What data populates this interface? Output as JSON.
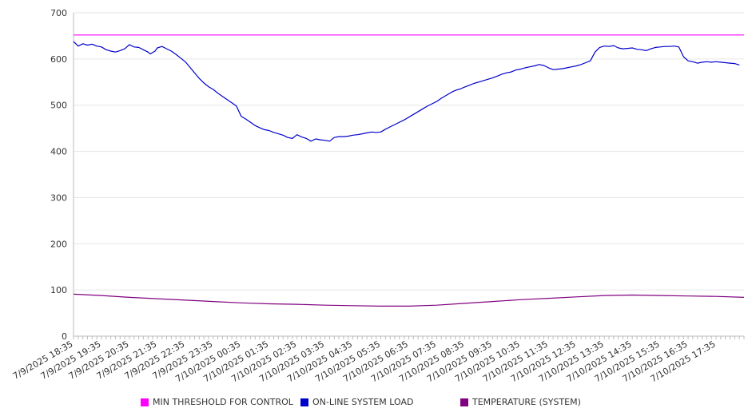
{
  "chart_data": {
    "type": "line",
    "title": "",
    "xlabel": "",
    "ylabel": "",
    "ylim": [
      0,
      700
    ],
    "yticks": [
      0,
      100,
      200,
      300,
      400,
      500,
      600,
      700
    ],
    "grid": true,
    "legend_position": "bottom",
    "x_tick_labels": [
      "7/9/2025 18:35",
      "7/9/2025 19:35",
      "7/9/2025 20:35",
      "7/9/2025 21:35",
      "7/9/2025 22:35",
      "7/9/2025 23:35",
      "7/10/2025 00:35",
      "7/10/2025 01:35",
      "7/10/2025 02:35",
      "7/10/2025 03:35",
      "7/10/2025 04:35",
      "7/10/2025 05:35",
      "7/10/2025 06:35",
      "7/10/2025 07:35",
      "7/10/2025 08:35",
      "7/10/2025 09:35",
      "7/10/2025 10:35",
      "7/10/2025 11:35",
      "7/10/2025 12:35",
      "7/10/2025 13:35",
      "7/10/2025 14:35",
      "7/10/2025 15:35",
      "7/10/2025 16:35",
      "7/10/2025 17:35"
    ],
    "x_range": [
      "7/9/2025 18:35",
      "7/10/2025 18:35"
    ],
    "series": [
      {
        "name": "MIN THRESHOLD FOR CONTROL",
        "color": "#ff00ff",
        "points": [
          [
            "7/9/2025 18:35",
            652
          ],
          [
            "7/10/2025 18:35",
            652
          ]
        ]
      },
      {
        "name": "ON-LINE SYSTEM LOAD",
        "color": "#0000cc",
        "points": [
          [
            "7/9/2025 18:35",
            638
          ],
          [
            "7/9/2025 18:45",
            628
          ],
          [
            "7/9/2025 18:55",
            633
          ],
          [
            "7/9/2025 19:05",
            630
          ],
          [
            "7/9/2025 19:15",
            632
          ],
          [
            "7/9/2025 19:25",
            628
          ],
          [
            "7/9/2025 19:35",
            626
          ],
          [
            "7/9/2025 19:45",
            620
          ],
          [
            "7/9/2025 19:55",
            617
          ],
          [
            "7/9/2025 20:05",
            615
          ],
          [
            "7/9/2025 20:15",
            618
          ],
          [
            "7/9/2025 20:25",
            622
          ],
          [
            "7/9/2025 20:35",
            631
          ],
          [
            "7/9/2025 20:45",
            626
          ],
          [
            "7/9/2025 20:55",
            625
          ],
          [
            "7/9/2025 21:05",
            620
          ],
          [
            "7/9/2025 21:15",
            615
          ],
          [
            "7/9/2025 21:20",
            611
          ],
          [
            "7/9/2025 21:30",
            617
          ],
          [
            "7/9/2025 21:35",
            624
          ],
          [
            "7/9/2025 21:45",
            627
          ],
          [
            "7/9/2025 21:55",
            622
          ],
          [
            "7/9/2025 22:05",
            617
          ],
          [
            "7/9/2025 22:15",
            610
          ],
          [
            "7/9/2025 22:25",
            602
          ],
          [
            "7/9/2025 22:35",
            594
          ],
          [
            "7/9/2025 22:45",
            582
          ],
          [
            "7/9/2025 22:55",
            570
          ],
          [
            "7/9/2025 23:05",
            558
          ],
          [
            "7/9/2025 23:15",
            548
          ],
          [
            "7/9/2025 23:25",
            540
          ],
          [
            "7/9/2025 23:35",
            534
          ],
          [
            "7/9/2025 23:45",
            526
          ],
          [
            "7/9/2025 23:55",
            519
          ],
          [
            "7/10/2025 00:05",
            512
          ],
          [
            "7/10/2025 00:15",
            505
          ],
          [
            "7/10/2025 00:25",
            498
          ],
          [
            "7/10/2025 00:35",
            476
          ],
          [
            "7/10/2025 00:45",
            470
          ],
          [
            "7/10/2025 00:55",
            463
          ],
          [
            "7/10/2025 01:05",
            456
          ],
          [
            "7/10/2025 01:15",
            451
          ],
          [
            "7/10/2025 01:25",
            447
          ],
          [
            "7/10/2025 01:35",
            445
          ],
          [
            "7/10/2025 01:45",
            441
          ],
          [
            "7/10/2025 01:55",
            438
          ],
          [
            "7/10/2025 02:05",
            435
          ],
          [
            "7/10/2025 02:15",
            430
          ],
          [
            "7/10/2025 02:25",
            428
          ],
          [
            "7/10/2025 02:35",
            436
          ],
          [
            "7/10/2025 02:45",
            431
          ],
          [
            "7/10/2025 02:55",
            428
          ],
          [
            "7/10/2025 03:05",
            422
          ],
          [
            "7/10/2025 03:15",
            427
          ],
          [
            "7/10/2025 03:25",
            425
          ],
          [
            "7/10/2025 03:35",
            424
          ],
          [
            "7/10/2025 03:45",
            422
          ],
          [
            "7/10/2025 03:55",
            430
          ],
          [
            "7/10/2025 04:05",
            432
          ],
          [
            "7/10/2025 04:15",
            432
          ],
          [
            "7/10/2025 04:25",
            433
          ],
          [
            "7/10/2025 04:35",
            435
          ],
          [
            "7/10/2025 04:45",
            436
          ],
          [
            "7/10/2025 04:55",
            438
          ],
          [
            "7/10/2025 05:05",
            440
          ],
          [
            "7/10/2025 05:15",
            442
          ],
          [
            "7/10/2025 05:25",
            441
          ],
          [
            "7/10/2025 05:35",
            442
          ],
          [
            "7/10/2025 05:45",
            448
          ],
          [
            "7/10/2025 05:55",
            453
          ],
          [
            "7/10/2025 06:05",
            458
          ],
          [
            "7/10/2025 06:15",
            463
          ],
          [
            "7/10/2025 06:25",
            468
          ],
          [
            "7/10/2025 06:35",
            474
          ],
          [
            "7/10/2025 06:45",
            480
          ],
          [
            "7/10/2025 06:55",
            486
          ],
          [
            "7/10/2025 07:05",
            492
          ],
          [
            "7/10/2025 07:15",
            498
          ],
          [
            "7/10/2025 07:25",
            503
          ],
          [
            "7/10/2025 07:35",
            508
          ],
          [
            "7/10/2025 07:45",
            515
          ],
          [
            "7/10/2025 07:55",
            521
          ],
          [
            "7/10/2025 08:05",
            527
          ],
          [
            "7/10/2025 08:15",
            532
          ],
          [
            "7/10/2025 08:25",
            535
          ],
          [
            "7/10/2025 08:35",
            539
          ],
          [
            "7/10/2025 08:45",
            543
          ],
          [
            "7/10/2025 08:55",
            547
          ],
          [
            "7/10/2025 09:05",
            550
          ],
          [
            "7/10/2025 09:15",
            553
          ],
          [
            "7/10/2025 09:25",
            556
          ],
          [
            "7/10/2025 09:35",
            559
          ],
          [
            "7/10/2025 09:45",
            563
          ],
          [
            "7/10/2025 09:55",
            567
          ],
          [
            "7/10/2025 10:05",
            570
          ],
          [
            "7/10/2025 10:15",
            572
          ],
          [
            "7/10/2025 10:25",
            576
          ],
          [
            "7/10/2025 10:35",
            578
          ],
          [
            "7/10/2025 10:45",
            581
          ],
          [
            "7/10/2025 10:55",
            583
          ],
          [
            "7/10/2025 11:05",
            585
          ],
          [
            "7/10/2025 11:15",
            588
          ],
          [
            "7/10/2025 11:25",
            586
          ],
          [
            "7/10/2025 11:35",
            581
          ],
          [
            "7/10/2025 11:45",
            577
          ],
          [
            "7/10/2025 11:55",
            578
          ],
          [
            "7/10/2025 12:05",
            579
          ],
          [
            "7/10/2025 12:15",
            581
          ],
          [
            "7/10/2025 12:25",
            583
          ],
          [
            "7/10/2025 12:35",
            585
          ],
          [
            "7/10/2025 12:45",
            588
          ],
          [
            "7/10/2025 12:55",
            592
          ],
          [
            "7/10/2025 13:05",
            596
          ],
          [
            "7/10/2025 13:15",
            615
          ],
          [
            "7/10/2025 13:25",
            625
          ],
          [
            "7/10/2025 13:35",
            628
          ],
          [
            "7/10/2025 13:45",
            627
          ],
          [
            "7/10/2025 13:55",
            629
          ],
          [
            "7/10/2025 14:05",
            624
          ],
          [
            "7/10/2025 14:15",
            622
          ],
          [
            "7/10/2025 14:25",
            623
          ],
          [
            "7/10/2025 14:35",
            624
          ],
          [
            "7/10/2025 14:45",
            621
          ],
          [
            "7/10/2025 14:55",
            620
          ],
          [
            "7/10/2025 15:05",
            618
          ],
          [
            "7/10/2025 15:15",
            622
          ],
          [
            "7/10/2025 15:25",
            625
          ],
          [
            "7/10/2025 15:35",
            626
          ],
          [
            "7/10/2025 15:45",
            627
          ],
          [
            "7/10/2025 15:55",
            627
          ],
          [
            "7/10/2025 16:05",
            628
          ],
          [
            "7/10/2025 16:15",
            626
          ],
          [
            "7/10/2025 16:25",
            605
          ],
          [
            "7/10/2025 16:35",
            596
          ],
          [
            "7/10/2025 16:45",
            594
          ],
          [
            "7/10/2025 16:55",
            591
          ],
          [
            "7/10/2025 17:05",
            593
          ],
          [
            "7/10/2025 17:15",
            594
          ],
          [
            "7/10/2025 17:25",
            593
          ],
          [
            "7/10/2025 17:35",
            594
          ],
          [
            "7/10/2025 17:45",
            593
          ],
          [
            "7/10/2025 17:55",
            592
          ],
          [
            "7/10/2025 18:05",
            591
          ],
          [
            "7/10/2025 18:15",
            590
          ],
          [
            "7/10/2025 18:25",
            587
          ]
        ]
      },
      {
        "name": "TEMPERATURE (SYSTEM)",
        "color": "#800080",
        "points": [
          [
            "7/9/2025 18:35",
            91
          ],
          [
            "7/9/2025 19:35",
            88
          ],
          [
            "7/9/2025 20:35",
            84
          ],
          [
            "7/9/2025 21:35",
            81
          ],
          [
            "7/9/2025 22:35",
            78
          ],
          [
            "7/9/2025 23:35",
            75
          ],
          [
            "7/10/2025 00:35",
            72
          ],
          [
            "7/10/2025 01:35",
            70
          ],
          [
            "7/10/2025 02:35",
            69
          ],
          [
            "7/10/2025 03:35",
            67
          ],
          [
            "7/10/2025 04:35",
            66
          ],
          [
            "7/10/2025 05:35",
            65
          ],
          [
            "7/10/2025 06:35",
            65
          ],
          [
            "7/10/2025 07:35",
            67
          ],
          [
            "7/10/2025 08:35",
            71
          ],
          [
            "7/10/2025 09:35",
            75
          ],
          [
            "7/10/2025 10:35",
            79
          ],
          [
            "7/10/2025 11:35",
            82
          ],
          [
            "7/10/2025 12:35",
            85
          ],
          [
            "7/10/2025 13:35",
            88
          ],
          [
            "7/10/2025 14:35",
            89
          ],
          [
            "7/10/2025 15:35",
            88
          ],
          [
            "7/10/2025 16:35",
            87
          ],
          [
            "7/10/2025 17:35",
            86
          ],
          [
            "7/10/2025 18:35",
            84
          ]
        ]
      }
    ]
  }
}
